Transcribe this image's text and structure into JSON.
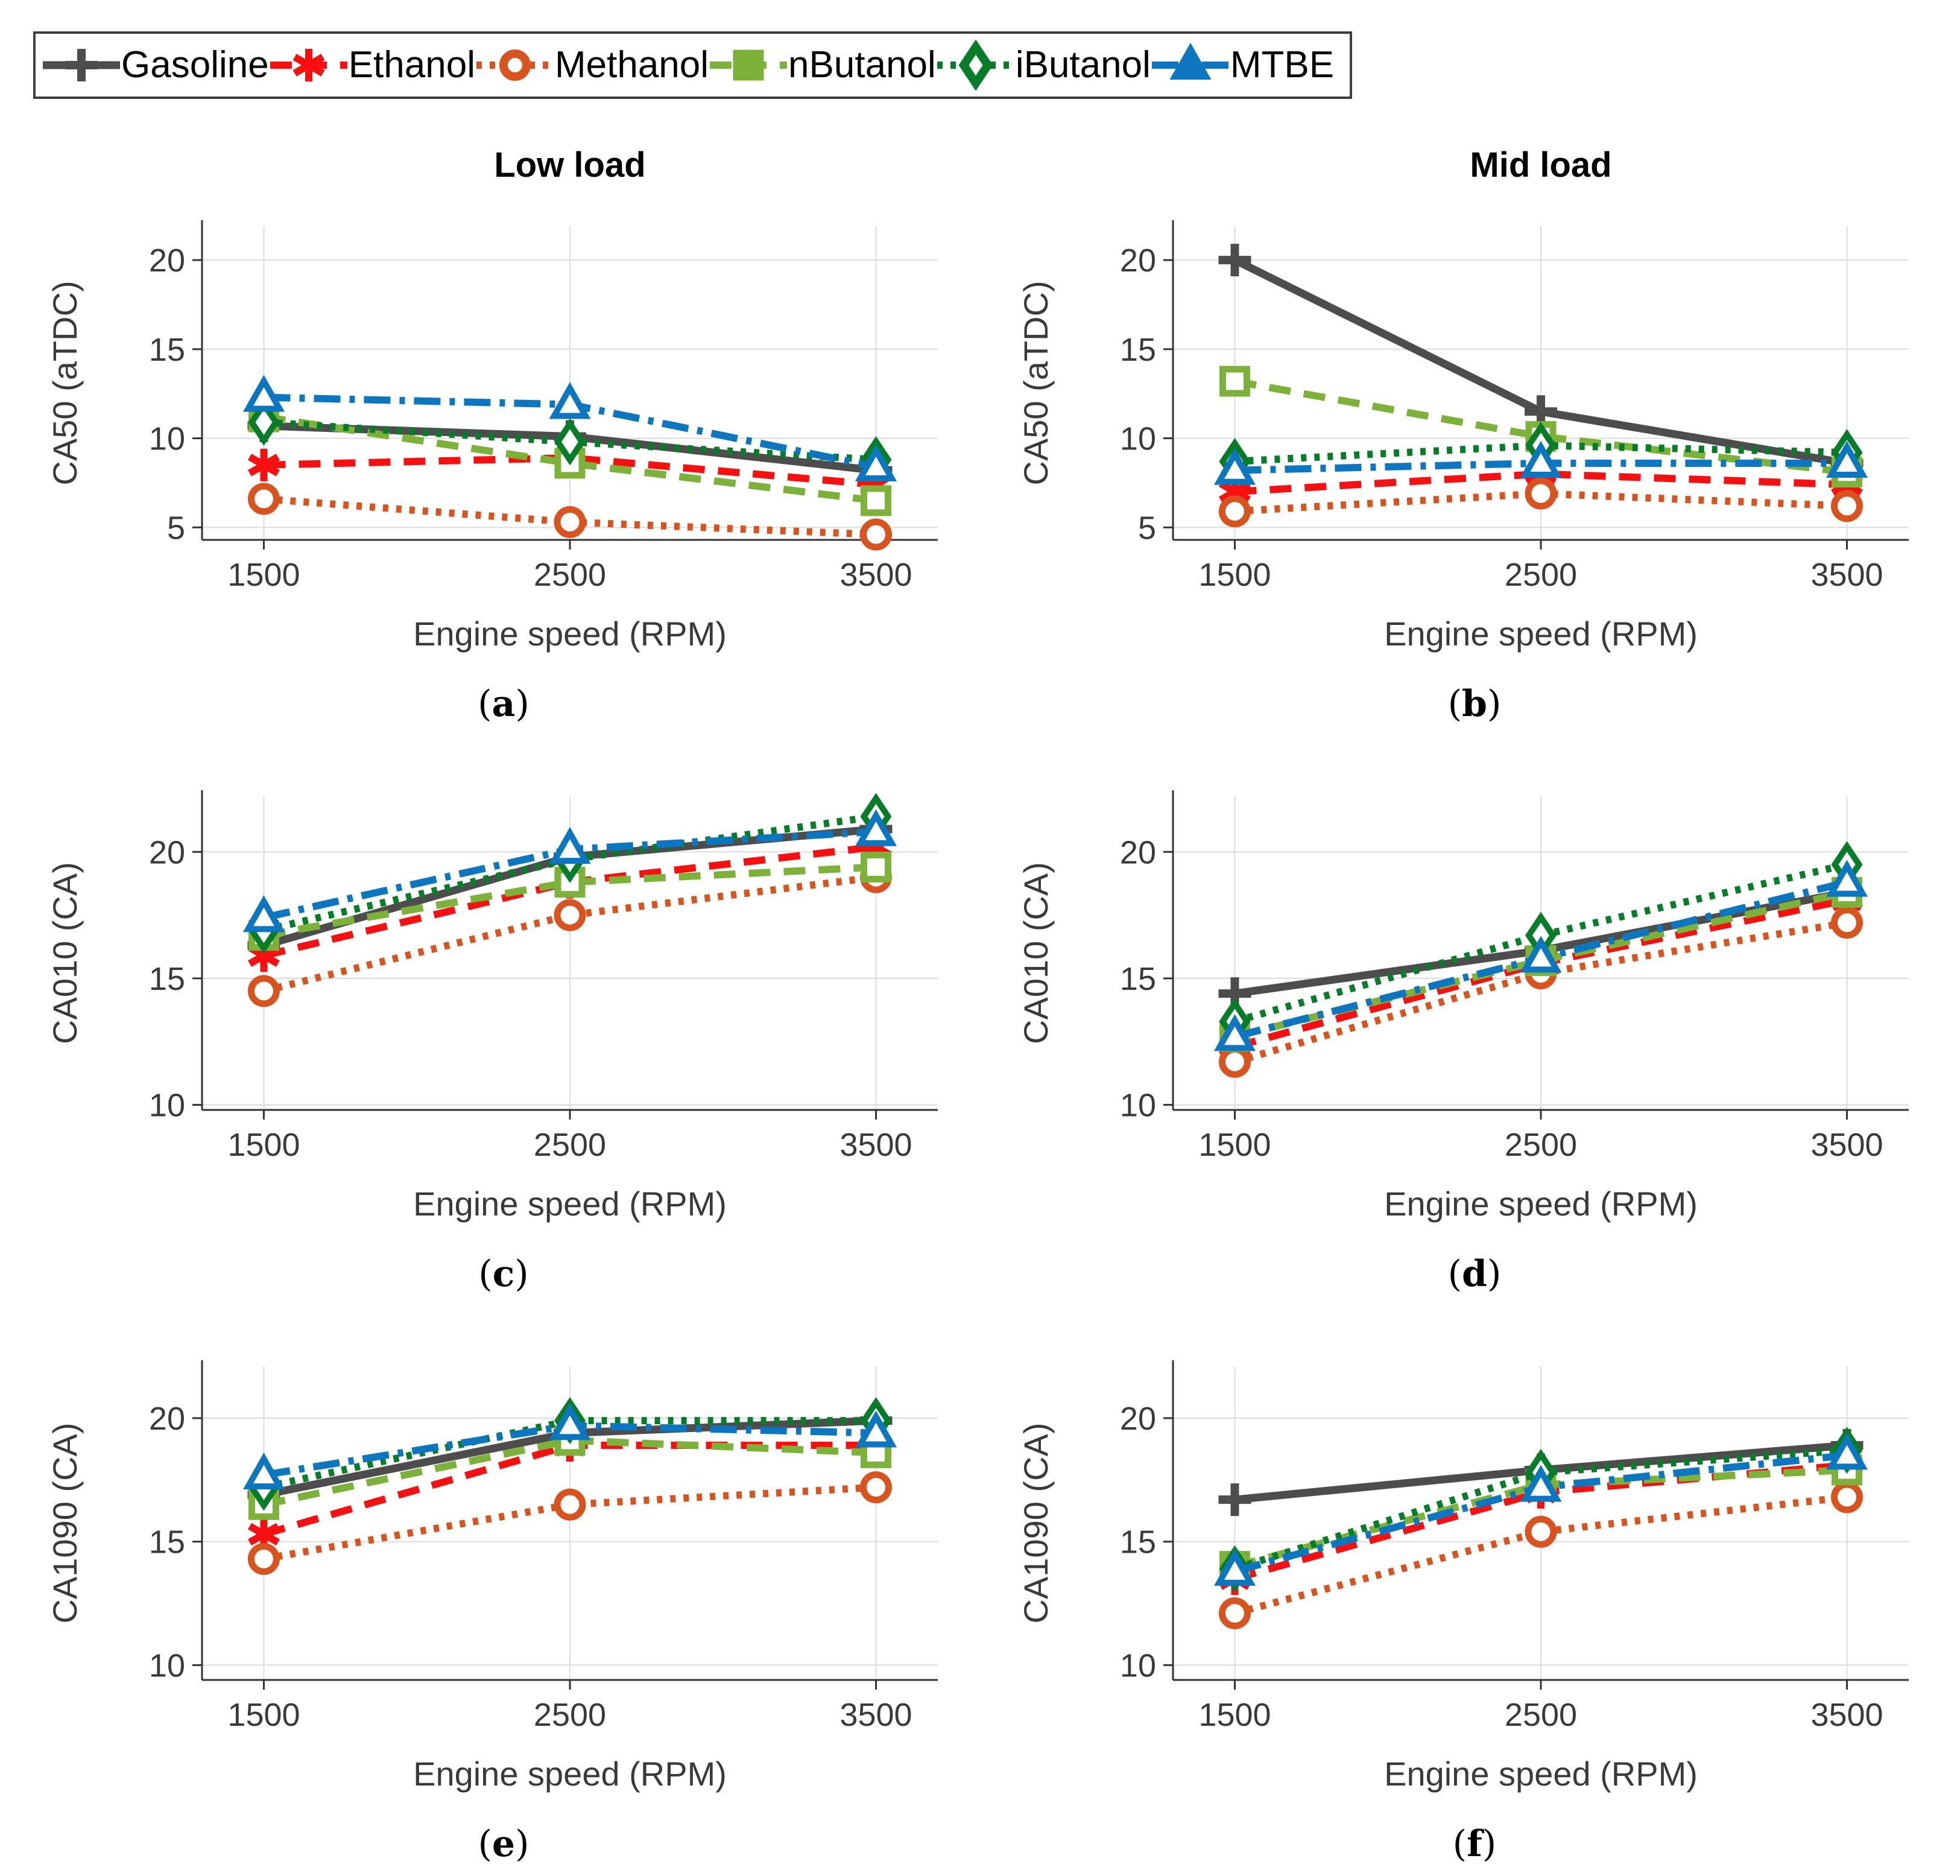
{
  "figure": {
    "background": "#ffffff",
    "grid_color": "#dcdcdc",
    "axis_color": "#333333",
    "caption_format": {
      "open": "(",
      "close": ")"
    }
  },
  "legend": {
    "position": "top-left",
    "entries": [
      {
        "id": "gasoline",
        "label": "Gasoline",
        "color": "#4d4d4d",
        "dash": "solid",
        "marker": "plus",
        "legend_fill": "glyph"
      },
      {
        "id": "ethanol",
        "label": "Ethanol",
        "color": "#f81010",
        "dash": "dashed",
        "marker": "asterisk",
        "legend_fill": "glyph"
      },
      {
        "id": "methanol",
        "label": "Methanol",
        "color": "#d9531e",
        "dash": "dotted",
        "marker": "circle",
        "legend_fill": "ring"
      },
      {
        "id": "nbutanol",
        "label": "nButanol",
        "color": "#7db23a",
        "dash": "dashed",
        "marker": "square",
        "legend_fill": "filled"
      },
      {
        "id": "ibutanol",
        "label": "iButanol",
        "color": "#077d29",
        "dash": "dotted",
        "marker": "diamond",
        "legend_fill": "thickring"
      },
      {
        "id": "mtbe",
        "label": "MTBE",
        "color": "#0d76c0",
        "dash": "dashdot",
        "marker": "triangle",
        "legend_fill": "filled"
      }
    ]
  },
  "chart_data": [
    {
      "id": "a",
      "type": "line",
      "letter": "a",
      "title": "Low load",
      "ylabel": "CA50 (aTDC)",
      "xlabel": "Engine speed (RPM)",
      "categories": [
        "1500",
        "2500",
        "3500"
      ],
      "yticks": [
        5,
        10,
        15,
        20
      ],
      "ylim": [
        4.3,
        21.9
      ],
      "grid": true,
      "legend_position": "figure-top",
      "series": [
        {
          "name": "Gasoline",
          "fuel": "gasoline",
          "values": [
            10.7,
            10.1,
            8.2
          ]
        },
        {
          "name": "Ethanol",
          "fuel": "ethanol",
          "values": [
            8.5,
            8.9,
            7.4
          ]
        },
        {
          "name": "Methanol",
          "fuel": "methanol",
          "values": [
            6.6,
            5.3,
            4.6
          ]
        },
        {
          "name": "nButanol",
          "fuel": "nbutanol",
          "values": [
            11.2,
            8.6,
            6.5
          ]
        },
        {
          "name": "iButanol",
          "fuel": "ibutanol",
          "values": [
            10.9,
            9.8,
            8.8
          ]
        },
        {
          "name": "MTBE",
          "fuel": "mtbe",
          "values": [
            12.3,
            11.9,
            8.4
          ]
        }
      ]
    },
    {
      "id": "b",
      "type": "line",
      "letter": "b",
      "title": "Mid load",
      "ylabel": "CA50 (aTDC)",
      "xlabel": "Engine speed (RPM)",
      "categories": [
        "1500",
        "2500",
        "3500"
      ],
      "yticks": [
        5,
        10,
        15,
        20
      ],
      "ylim": [
        4.3,
        21.9
      ],
      "grid": true,
      "series": [
        {
          "name": "Gasoline",
          "fuel": "gasoline",
          "values": [
            20.0,
            11.5,
            8.6
          ]
        },
        {
          "name": "Ethanol",
          "fuel": "ethanol",
          "values": [
            7.0,
            8.0,
            7.4
          ]
        },
        {
          "name": "Methanol",
          "fuel": "methanol",
          "values": [
            5.9,
            6.9,
            6.2
          ]
        },
        {
          "name": "nButanol",
          "fuel": "nbutanol",
          "values": [
            13.2,
            10.1,
            8.1
          ]
        },
        {
          "name": "iButanol",
          "fuel": "ibutanol",
          "values": [
            8.7,
            9.6,
            9.2
          ]
        },
        {
          "name": "MTBE",
          "fuel": "mtbe",
          "values": [
            8.2,
            8.6,
            8.6
          ]
        }
      ]
    },
    {
      "id": "c",
      "type": "line",
      "letter": "c",
      "title": "",
      "ylabel": "CA010 (CA)",
      "xlabel": "Engine speed (RPM)",
      "categories": [
        "1500",
        "2500",
        "3500"
      ],
      "yticks": [
        10,
        15,
        20
      ],
      "ylim": [
        9.8,
        22.2
      ],
      "grid": true,
      "series": [
        {
          "name": "Gasoline",
          "fuel": "gasoline",
          "values": [
            16.3,
            19.8,
            20.9
          ]
        },
        {
          "name": "Ethanol",
          "fuel": "ethanol",
          "values": [
            15.9,
            18.8,
            20.2
          ]
        },
        {
          "name": "Methanol",
          "fuel": "methanol",
          "values": [
            14.5,
            17.5,
            19.0
          ]
        },
        {
          "name": "nButanol",
          "fuel": "nbutanol",
          "values": [
            16.7,
            18.8,
            19.4
          ]
        },
        {
          "name": "iButanol",
          "fuel": "ibutanol",
          "values": [
            16.9,
            19.7,
            21.4
          ]
        },
        {
          "name": "MTBE",
          "fuel": "mtbe",
          "values": [
            17.4,
            20.1,
            20.8
          ]
        }
      ]
    },
    {
      "id": "d",
      "type": "line",
      "letter": "d",
      "title": "",
      "ylabel": "CA010 (CA)",
      "xlabel": "Engine speed (RPM)",
      "categories": [
        "1500",
        "2500",
        "3500"
      ],
      "yticks": [
        10,
        15,
        20
      ],
      "ylim": [
        9.8,
        22.2
      ],
      "grid": true,
      "series": [
        {
          "name": "Gasoline",
          "fuel": "gasoline",
          "values": [
            14.4,
            16.1,
            18.4
          ]
        },
        {
          "name": "Ethanol",
          "fuel": "ethanol",
          "values": [
            12.3,
            15.6,
            18.1
          ]
        },
        {
          "name": "Methanol",
          "fuel": "methanol",
          "values": [
            11.7,
            15.2,
            17.2
          ]
        },
        {
          "name": "nButanol",
          "fuel": "nbutanol",
          "values": [
            12.7,
            15.7,
            18.4
          ]
        },
        {
          "name": "iButanol",
          "fuel": "ibutanol",
          "values": [
            13.3,
            16.7,
            19.5
          ]
        },
        {
          "name": "MTBE",
          "fuel": "mtbe",
          "values": [
            12.7,
            15.8,
            18.8
          ]
        }
      ]
    },
    {
      "id": "e",
      "type": "line",
      "letter": "e",
      "title": "",
      "ylabel": "CA1090 (CA)",
      "xlabel": "Engine speed (RPM)",
      "categories": [
        "1500",
        "2500",
        "3500"
      ],
      "yticks": [
        10,
        15,
        20
      ],
      "ylim": [
        9.4,
        22.1
      ],
      "grid": true,
      "series": [
        {
          "name": "Gasoline",
          "fuel": "gasoline",
          "values": [
            16.9,
            19.4,
            19.9
          ]
        },
        {
          "name": "Ethanol",
          "fuel": "ethanol",
          "values": [
            15.3,
            18.9,
            18.9
          ]
        },
        {
          "name": "Methanol",
          "fuel": "methanol",
          "values": [
            14.3,
            16.5,
            17.2
          ]
        },
        {
          "name": "nButanol",
          "fuel": "nbutanol",
          "values": [
            16.5,
            19.1,
            18.6
          ]
        },
        {
          "name": "iButanol",
          "fuel": "ibutanol",
          "values": [
            17.2,
            19.9,
            19.9
          ]
        },
        {
          "name": "MTBE",
          "fuel": "mtbe",
          "values": [
            17.7,
            19.7,
            19.4
          ]
        }
      ]
    },
    {
      "id": "f",
      "type": "line",
      "letter": "f",
      "title": "",
      "ylabel": "CA1090 (CA)",
      "xlabel": "Engine speed (RPM)",
      "categories": [
        "1500",
        "2500",
        "3500"
      ],
      "yticks": [
        10,
        15,
        20
      ],
      "ylim": [
        9.4,
        22.1
      ],
      "grid": true,
      "series": [
        {
          "name": "Gasoline",
          "fuel": "gasoline",
          "values": [
            16.7,
            17.9,
            18.9
          ]
        },
        {
          "name": "Ethanol",
          "fuel": "ethanol",
          "values": [
            13.5,
            17.0,
            18.1
          ]
        },
        {
          "name": "Methanol",
          "fuel": "methanol",
          "values": [
            12.1,
            15.4,
            16.8
          ]
        },
        {
          "name": "nButanol",
          "fuel": "nbutanol",
          "values": [
            14.0,
            17.3,
            17.9
          ]
        },
        {
          "name": "iButanol",
          "fuel": "ibutanol",
          "values": [
            13.9,
            17.8,
            18.7
          ]
        },
        {
          "name": "MTBE",
          "fuel": "mtbe",
          "values": [
            13.8,
            17.2,
            18.5
          ]
        }
      ]
    }
  ]
}
